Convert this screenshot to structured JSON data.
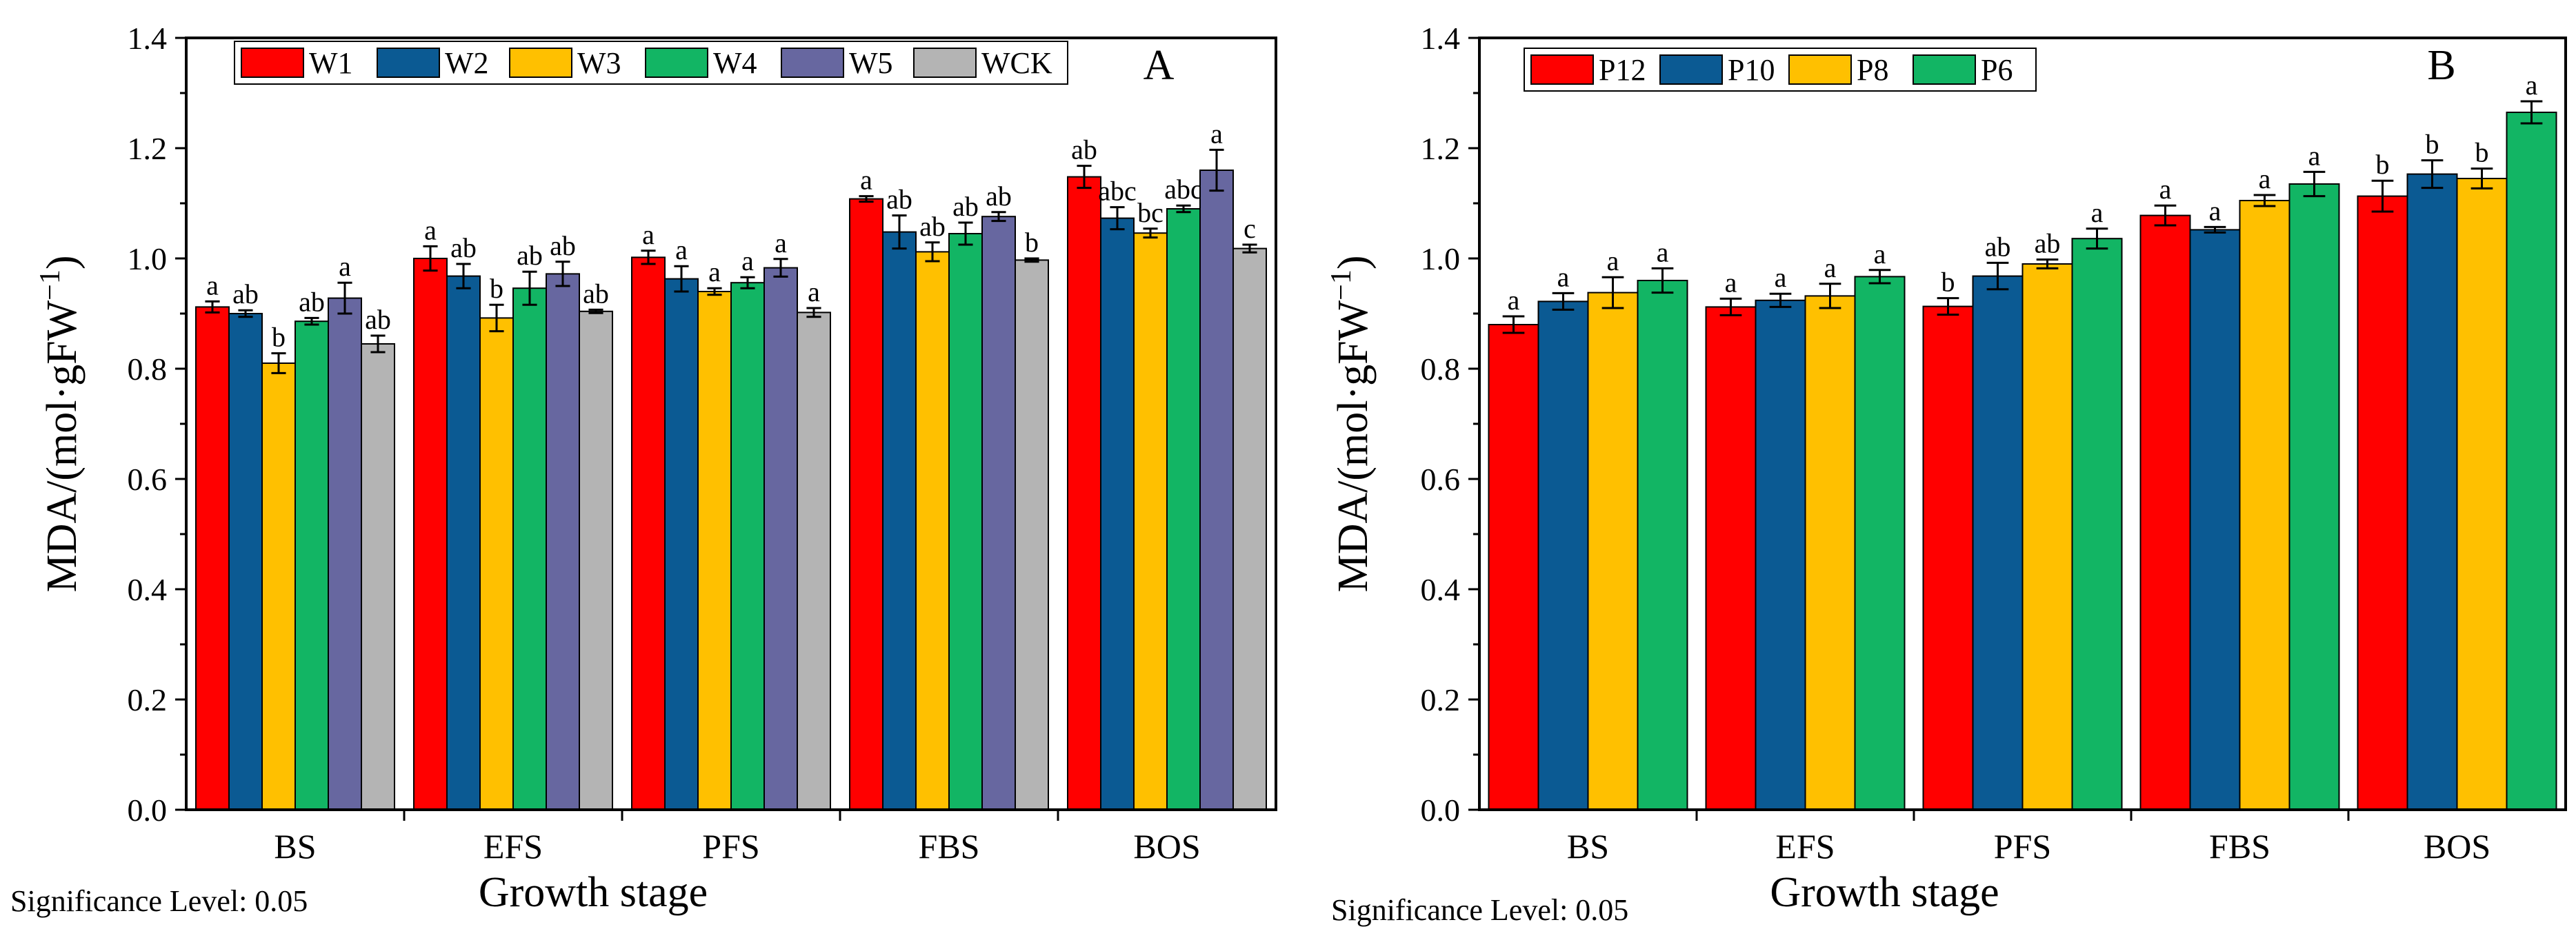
{
  "chart_data": [
    {
      "type": "bar",
      "panel_label": "A",
      "xlabel": "Growth stage",
      "ylabel_main": "MDA/(mol·gFW",
      "ylabel_sup": "−1",
      "ylabel_close": ")",
      "ylim": [
        0,
        1.4
      ],
      "yticks": [
        "0.0",
        "0.2",
        "0.4",
        "0.6",
        "0.8",
        "1.0",
        "1.2",
        "1.4"
      ],
      "ytick_values": [
        0,
        0.2,
        0.4,
        0.6,
        0.8,
        1.0,
        1.2,
        1.4
      ],
      "categories": [
        "BS",
        "EFS",
        "PFS",
        "FBS",
        "BOS"
      ],
      "legend_position": "top",
      "note": "Significance Level: 0.05",
      "series": [
        {
          "name": "W1",
          "color": "#ff0000",
          "values": [
            0.912,
            1.0,
            1.002,
            1.108,
            1.148
          ],
          "errors": [
            0.01,
            0.022,
            0.012,
            0.005,
            0.02
          ],
          "letters": [
            "a",
            "a",
            "a",
            "a",
            "ab"
          ]
        },
        {
          "name": "W2",
          "color": "#0b5a93",
          "values": [
            0.9,
            0.968,
            0.963,
            1.048,
            1.073
          ],
          "errors": [
            0.006,
            0.022,
            0.023,
            0.03,
            0.02
          ],
          "letters": [
            "ab",
            "ab",
            "a",
            "ab",
            "abc"
          ]
        },
        {
          "name": "W3",
          "color": "#ffc000",
          "values": [
            0.81,
            0.892,
            0.94,
            1.012,
            1.046
          ],
          "errors": [
            0.018,
            0.024,
            0.006,
            0.017,
            0.008
          ],
          "letters": [
            "b",
            "b",
            "a",
            "ab",
            "bc"
          ]
        },
        {
          "name": "W4",
          "color": "#12b564",
          "values": [
            0.886,
            0.946,
            0.956,
            1.045,
            1.09
          ],
          "errors": [
            0.006,
            0.03,
            0.01,
            0.02,
            0.006
          ],
          "letters": [
            "ab",
            "ab",
            "a",
            "ab",
            "abc"
          ]
        },
        {
          "name": "W5",
          "color": "#6767a0",
          "values": [
            0.928,
            0.972,
            0.983,
            1.076,
            1.16
          ],
          "errors": [
            0.028,
            0.022,
            0.016,
            0.008,
            0.037
          ],
          "letters": [
            "a",
            "ab",
            "a",
            "ab",
            "a"
          ]
        },
        {
          "name": "WCK",
          "color": "#b4b4b4",
          "values": [
            0.845,
            0.904,
            0.902,
            0.997,
            1.018
          ],
          "errors": [
            0.015,
            0.003,
            0.008,
            0.003,
            0.007
          ],
          "letters": [
            "ab",
            "ab",
            "a",
            "b",
            "c"
          ]
        }
      ]
    },
    {
      "type": "bar",
      "panel_label": "B",
      "xlabel": "Growth stage",
      "ylabel_main": "MDA/(mol·gFW",
      "ylabel_sup": "−1",
      "ylabel_close": ")",
      "ylim": [
        0,
        1.4
      ],
      "yticks": [
        "0.0",
        "0.2",
        "0.4",
        "0.6",
        "0.8",
        "1.0",
        "1.2",
        "1.4"
      ],
      "ytick_values": [
        0,
        0.2,
        0.4,
        0.6,
        0.8,
        1.0,
        1.2,
        1.4
      ],
      "categories": [
        "BS",
        "EFS",
        "PFS",
        "FBS",
        "BOS"
      ],
      "legend_position": "top-left",
      "note": "Significance Level: 0.05",
      "series": [
        {
          "name": "P12",
          "color": "#ff0000",
          "values": [
            0.88,
            0.912,
            0.913,
            1.078,
            1.113
          ],
          "errors": [
            0.015,
            0.015,
            0.015,
            0.018,
            0.028
          ],
          "letters": [
            "a",
            "a",
            "b",
            "a",
            "b"
          ]
        },
        {
          "name": "P10",
          "color": "#0b5a93",
          "values": [
            0.922,
            0.924,
            0.968,
            1.052,
            1.153
          ],
          "errors": [
            0.015,
            0.012,
            0.024,
            0.005,
            0.025
          ],
          "letters": [
            "a",
            "a",
            "ab",
            "a",
            "b"
          ]
        },
        {
          "name": "P8",
          "color": "#ffc000",
          "values": [
            0.938,
            0.932,
            0.99,
            1.105,
            1.145
          ],
          "errors": [
            0.028,
            0.022,
            0.008,
            0.01,
            0.018
          ],
          "letters": [
            "a",
            "a",
            "ab",
            "a",
            "b"
          ]
        },
        {
          "name": "P6",
          "color": "#12b564",
          "values": [
            0.96,
            0.967,
            1.036,
            1.135,
            1.265
          ],
          "errors": [
            0.022,
            0.012,
            0.018,
            0.022,
            0.02
          ],
          "letters": [
            "a",
            "a",
            "a",
            "a",
            "a"
          ]
        }
      ]
    }
  ]
}
